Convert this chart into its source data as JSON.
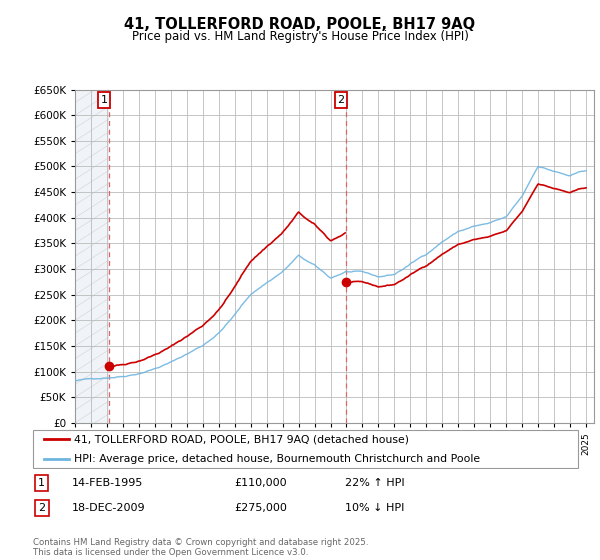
{
  "title1": "41, TOLLERFORD ROAD, POOLE, BH17 9AQ",
  "title2": "Price paid vs. HM Land Registry's House Price Index (HPI)",
  "legend_line1": "41, TOLLERFORD ROAD, POOLE, BH17 9AQ (detached house)",
  "legend_line2": "HPI: Average price, detached house, Bournemouth Christchurch and Poole",
  "annotation1": {
    "label": "1",
    "date": "14-FEB-1995",
    "price": "£110,000",
    "note": "22% ↑ HPI"
  },
  "annotation2": {
    "label": "2",
    "date": "18-DEC-2009",
    "price": "£275,000",
    "note": "10% ↓ HPI"
  },
  "footer": "Contains HM Land Registry data © Crown copyright and database right 2025.\nThis data is licensed under the Open Government Licence v3.0.",
  "tx1_x": 1995.12,
  "tx1_y": 110000,
  "tx2_x": 2009.96,
  "tx2_y": 275000,
  "ylim": [
    0,
    650000
  ],
  "xlim_start": 1993.0,
  "xlim_end": 2025.5,
  "price_color": "#cc0000",
  "hpi_color": "#6eb5e0",
  "dashed_color": "#dd6666",
  "background_color": "#ffffff",
  "grid_color": "#cccccc",
  "hatch_color": "#d8d8d8",
  "hatch_bg_color": "#e8eef5"
}
